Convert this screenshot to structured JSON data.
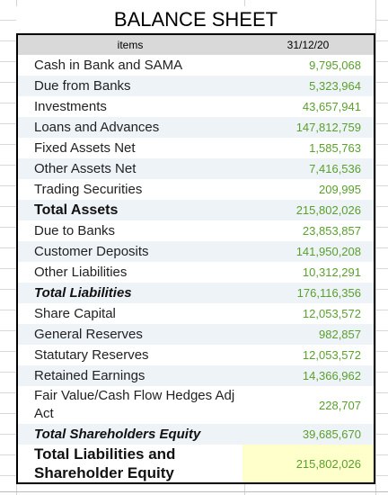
{
  "title": "BALANCE SHEET",
  "header": {
    "items": "items",
    "date": "31/12/20"
  },
  "rows": [
    {
      "label": "Cash in Bank and SAMA",
      "value": "9,795,068"
    },
    {
      "label": "Due from Banks",
      "value": "5,323,964"
    },
    {
      "label": "Investments",
      "value": "43,657,941"
    },
    {
      "label": "Loans and Advances",
      "value": "147,812,759"
    },
    {
      "label": "Fixed Assets Net",
      "value": "1,585,763"
    },
    {
      "label": "Other Assets Net",
      "value": "7,416,536"
    },
    {
      "label": "Trading Securities",
      "value": "209,995"
    },
    {
      "label": "Total Assets",
      "value": "215,802,026"
    },
    {
      "label": "Due to Banks",
      "value": "23,853,857"
    },
    {
      "label": "Customer Deposits",
      "value": "141,950,208"
    },
    {
      "label": "Other Liabilities",
      "value": "10,312,291"
    },
    {
      "label": "Total Liabilities",
      "value": "176,116,356"
    },
    {
      "label": "Share Capital",
      "value": "12,053,572"
    },
    {
      "label": "General Reserves",
      "value": "982,857"
    },
    {
      "label": "Statutary Reserves",
      "value": "12,053,572"
    },
    {
      "label": "Retained Earnings",
      "value": "14,366,962"
    },
    {
      "label": "Fair Value/Cash Flow Hedges Adj Act",
      "value": "228,707"
    },
    {
      "label": "Total Shareholders Equity",
      "value": "39,685,670"
    },
    {
      "label": "Total Liabilities and Shareholder Equity",
      "value": "215,802,026"
    }
  ],
  "colors": {
    "value_text": "#5aa02c",
    "header_bg": "#d9d9d9",
    "highlight_bg": "#ffffcc",
    "alt_row_bg": "#eef3f8"
  }
}
